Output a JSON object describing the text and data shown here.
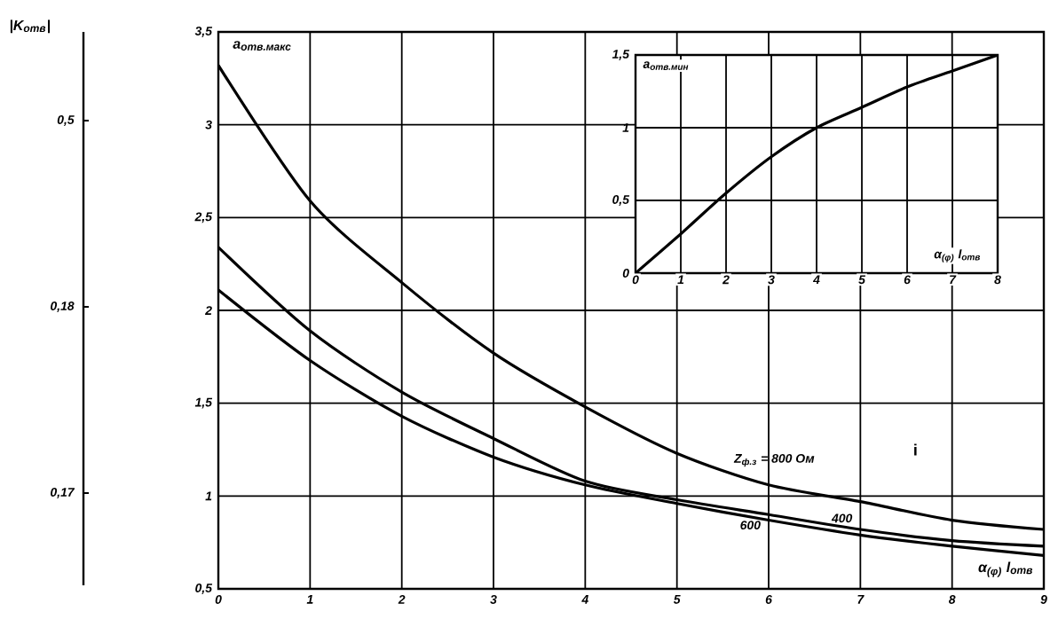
{
  "chart_data": [
    {
      "type": "line",
      "ylabel": "a$_{отв.макс}$",
      "xlabel": "α$_{(φ)}$ l$_{отв}$",
      "x": [
        0,
        1,
        2,
        3,
        4,
        5,
        6,
        7,
        8,
        9
      ],
      "series": [
        {
          "name": "Z$_{ф.з}$ = 800 Ом",
          "color": "#000000",
          "values": [
            3.32,
            2.59,
            2.15,
            1.77,
            1.48,
            1.23,
            1.06,
            0.97,
            0.87,
            0.82
          ]
        },
        {
          "name": "400",
          "color": "#000000",
          "values": [
            2.34,
            1.89,
            1.56,
            1.31,
            1.08,
            0.98,
            0.9,
            0.82,
            0.76,
            0.73
          ]
        },
        {
          "name": "600",
          "color": "#000000",
          "values": [
            2.11,
            1.73,
            1.43,
            1.21,
            1.06,
            0.96,
            0.87,
            0.79,
            0.73,
            0.68
          ]
        }
      ],
      "xlim": [
        0,
        9
      ],
      "xticks": [
        0,
        1,
        2,
        3,
        4,
        5,
        6,
        7,
        8,
        9
      ],
      "ylim": [
        0.5,
        3.5
      ],
      "yticks": [
        {
          "value": 0.5,
          "label": "0,5"
        },
        1,
        {
          "value": 1.5,
          "label": "1,5"
        },
        2,
        {
          "value": 2.5,
          "label": "2,5"
        },
        3,
        {
          "value": 3.5,
          "label": "3,5"
        }
      ],
      "annotations": [
        "i"
      ],
      "grid": true,
      "marker": "none",
      "line_style": "solid"
    },
    {
      "type": "line",
      "ylabel": "a$_{отв.мин}$",
      "xlabel": "α$_{(φ)}$ l$_{отв}$",
      "x": [
        0,
        1,
        2,
        3,
        4,
        5,
        6,
        7,
        8
      ],
      "series": [
        {
          "color": "#000000",
          "values": [
            0,
            0.27,
            0.55,
            0.8,
            1.0,
            1.14,
            1.28,
            1.39,
            1.5
          ]
        }
      ],
      "xlim": [
        0,
        8
      ],
      "xticks": [
        0,
        1,
        2,
        3,
        4,
        5,
        6,
        7,
        8
      ],
      "ylim": [
        0,
        1.5
      ],
      "yticks": [
        0,
        {
          "value": 0.5,
          "label": "0,5"
        },
        1,
        {
          "value": 1.5,
          "label": "1,5"
        }
      ],
      "grid": true,
      "marker": "none",
      "line_style": "solid"
    },
    {
      "type": "other",
      "title": "|K$_{отв}$|",
      "annotations": [
        "0,5",
        "0,18",
        "0,17"
      ]
    }
  ]
}
